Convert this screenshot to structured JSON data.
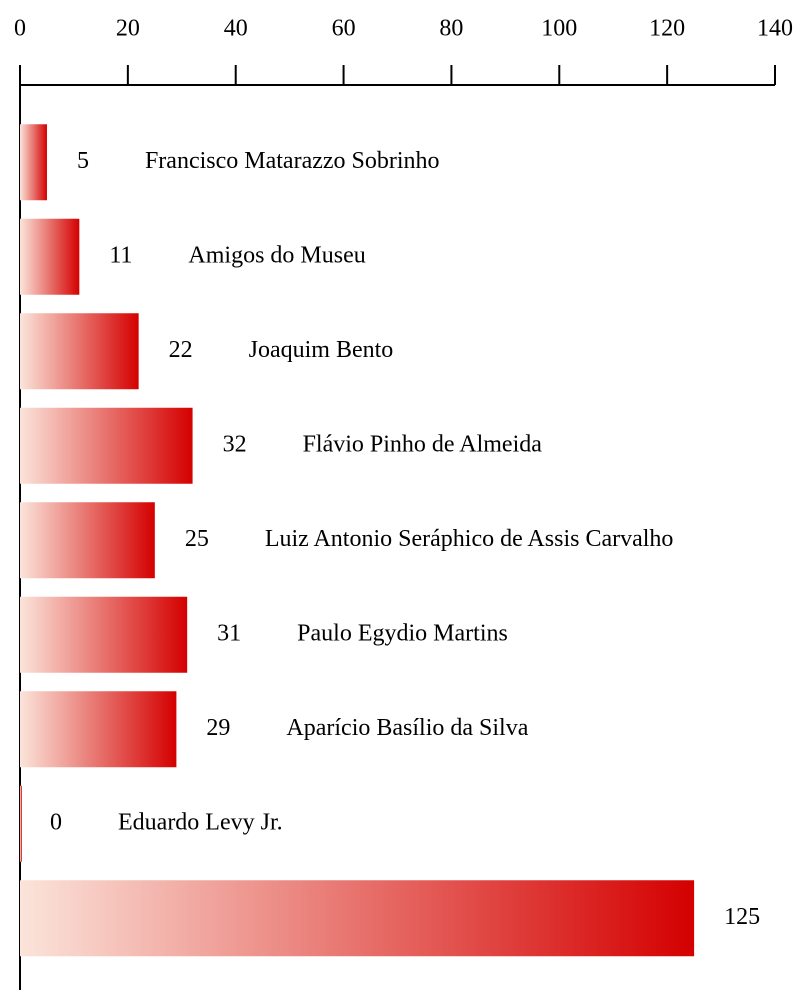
{
  "chart_data": {
    "type": "barh",
    "categories": [
      "Francisco Matarazzo Sobrinho",
      "Amigos do Museu",
      "Joaquim Bento",
      "Flávio Pinho de Almeida",
      "Luiz Antonio Seráphico de Assis Carvalho",
      "Paulo Egydio Martins",
      "Aparício Basílio da Silva",
      "Eduardo Levy Jr.",
      null
    ],
    "values": [
      5,
      11,
      22,
      32,
      25,
      31,
      29,
      0,
      125
    ],
    "color_start": "#fbe4da",
    "color_end": "#d40000",
    "xlim": [
      0,
      140
    ],
    "xticks": [
      0,
      20,
      40,
      60,
      80,
      100,
      120,
      140
    ]
  }
}
